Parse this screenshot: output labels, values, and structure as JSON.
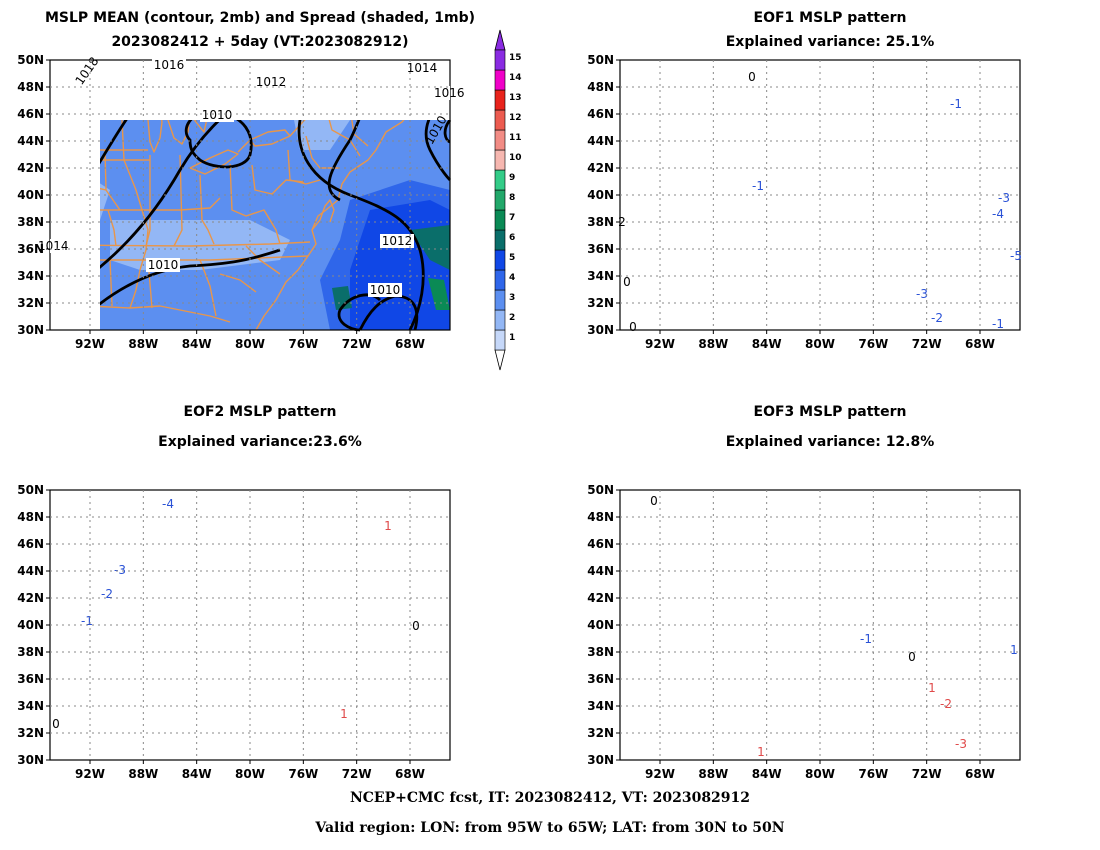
{
  "panels": {
    "mean": {
      "title1": "MSLP MEAN (contour, 2mb) and Spread (shaded, 1mb)",
      "title2": "2023082412 + 5day (VT:2023082912)"
    },
    "eof1": {
      "title1": "EOF1 MSLP pattern",
      "title2": "Explained variance: 25.1%"
    },
    "eof2": {
      "title1": "EOF2 MSLP pattern",
      "title2": "Explained variance:23.6%"
    },
    "eof3": {
      "title1": "EOF3 MSLP pattern",
      "title2": "Explained variance: 12.8%"
    }
  },
  "lat_labels": [
    "50N",
    "48N",
    "46N",
    "44N",
    "42N",
    "40N",
    "38N",
    "36N",
    "34N",
    "32N",
    "30N"
  ],
  "lon_labels": [
    "92W",
    "88W",
    "84W",
    "80W",
    "76W",
    "72W",
    "68W"
  ],
  "colorbar": {
    "levels": [
      "1",
      "2",
      "3",
      "4",
      "5",
      "6",
      "7",
      "8",
      "9",
      "10",
      "11",
      "12",
      "13",
      "14",
      "15"
    ],
    "colors": [
      "#c6d8f9",
      "#93b7f5",
      "#5c8ff0",
      "#2f66ea",
      "#1047e6",
      "#0a6e6a",
      "#0a8a55",
      "#22a86a",
      "#33cc88",
      "#f6b7b0",
      "#f28c85",
      "#ec5b50",
      "#e8231c",
      "#f000c8",
      "#8a2be2"
    ]
  },
  "mean_contour_labels": [
    "1018",
    "1016",
    "1012",
    "1010",
    "1014",
    "1016",
    "1014",
    "1010",
    "1012",
    "1010",
    "1010"
  ],
  "eof1_labels": [
    "0",
    "-1",
    "-1",
    "-3",
    "-4",
    "-5",
    "-3",
    "-2",
    "-1",
    "0",
    "0",
    "2"
  ],
  "eof2_labels": [
    "-4",
    "-3",
    "-2",
    "-1",
    "0",
    "0",
    "1",
    "1"
  ],
  "eof3_labels": [
    "0",
    "0",
    "-1",
    "1",
    "-2",
    "-3",
    "1",
    "1"
  ],
  "footer": {
    "line1": "NCEP+CMC fcst, IT: 2023082412, VT: 2023082912",
    "line2": "Valid region: LON: from 95W to 65W; LAT: from 30N to 50N"
  }
}
